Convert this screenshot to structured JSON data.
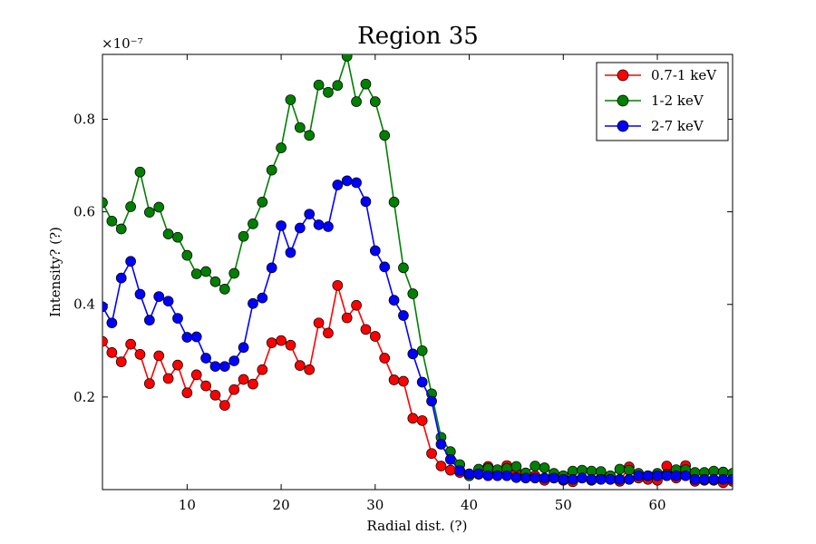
{
  "chart_data": {
    "type": "line",
    "title": "Region 35",
    "xlabel": "Radial dist. (?)",
    "ylabel": "Intensity? (?)",
    "offset_text": "×10⁻⁷",
    "xlim": [
      1,
      68
    ],
    "ylim": [
      0.0,
      0.94
    ],
    "xticks": [
      10,
      20,
      30,
      40,
      50,
      60
    ],
    "yticks": [
      0.2,
      0.4,
      0.6,
      0.8
    ],
    "xtick_labels": [
      "10",
      "20",
      "30",
      "40",
      "50",
      "60"
    ],
    "ytick_labels": [
      "0.2",
      "0.4",
      "0.6",
      "0.8"
    ],
    "grid": false,
    "legend_position": "top-right",
    "x": [
      1,
      2,
      3,
      4,
      5,
      6,
      7,
      8,
      9,
      10,
      11,
      12,
      13,
      14,
      15,
      16,
      17,
      18,
      19,
      20,
      21,
      22,
      23,
      24,
      25,
      26,
      27,
      28,
      29,
      30,
      31,
      32,
      33,
      34,
      35,
      36,
      37,
      38,
      39,
      40,
      41,
      42,
      43,
      44,
      45,
      46,
      47,
      48,
      49,
      50,
      51,
      52,
      53,
      54,
      55,
      56,
      57,
      58,
      59,
      60,
      61,
      62,
      63,
      64,
      65,
      66,
      67,
      68
    ],
    "series": [
      {
        "name": "0.7-1 keV",
        "color": "#ff0000",
        "values": [
          0.32,
          0.296,
          0.276,
          0.314,
          0.292,
          0.229,
          0.289,
          0.24,
          0.269,
          0.209,
          0.248,
          0.224,
          0.204,
          0.182,
          0.216,
          0.238,
          0.228,
          0.259,
          0.317,
          0.322,
          0.312,
          0.268,
          0.259,
          0.36,
          0.338,
          0.441,
          0.371,
          0.398,
          0.346,
          0.331,
          0.284,
          0.237,
          0.234,
          0.154,
          0.149,
          0.078,
          0.051,
          0.042,
          0.037,
          0.03,
          0.033,
          0.05,
          0.035,
          0.052,
          0.035,
          0.027,
          0.03,
          0.02,
          0.025,
          0.02,
          0.017,
          0.025,
          0.02,
          0.025,
          0.022,
          0.018,
          0.049,
          0.025,
          0.022,
          0.02,
          0.051,
          0.025,
          0.052,
          0.018,
          0.02,
          0.02,
          0.015,
          0.018
        ]
      },
      {
        "name": "1-2 keV",
        "color": "#007f00",
        "values": [
          0.62,
          0.58,
          0.563,
          0.611,
          0.686,
          0.599,
          0.61,
          0.552,
          0.545,
          0.506,
          0.466,
          0.471,
          0.449,
          0.433,
          0.467,
          0.547,
          0.574,
          0.621,
          0.69,
          0.738,
          0.842,
          0.782,
          0.765,
          0.874,
          0.858,
          0.873,
          0.936,
          0.838,
          0.876,
          0.838,
          0.765,
          0.621,
          0.479,
          0.423,
          0.3,
          0.207,
          0.113,
          0.082,
          0.054,
          0.03,
          0.044,
          0.046,
          0.043,
          0.046,
          0.05,
          0.036,
          0.051,
          0.047,
          0.035,
          0.03,
          0.04,
          0.042,
          0.04,
          0.039,
          0.03,
          0.044,
          0.042,
          0.035,
          0.03,
          0.035,
          0.033,
          0.043,
          0.043,
          0.037,
          0.037,
          0.04,
          0.038,
          0.035
        ]
      },
      {
        "name": "2-7 keV",
        "color": "#0000ff",
        "values": [
          0.395,
          0.36,
          0.457,
          0.493,
          0.422,
          0.366,
          0.417,
          0.407,
          0.37,
          0.329,
          0.33,
          0.284,
          0.266,
          0.266,
          0.278,
          0.307,
          0.402,
          0.414,
          0.479,
          0.57,
          0.512,
          0.565,
          0.595,
          0.572,
          0.568,
          0.658,
          0.667,
          0.663,
          0.622,
          0.516,
          0.481,
          0.409,
          0.376,
          0.293,
          0.232,
          0.191,
          0.098,
          0.065,
          0.041,
          0.034,
          0.034,
          0.03,
          0.03,
          0.03,
          0.026,
          0.025,
          0.025,
          0.025,
          0.025,
          0.022,
          0.022,
          0.025,
          0.022,
          0.022,
          0.022,
          0.022,
          0.022,
          0.03,
          0.03,
          0.03,
          0.03,
          0.03,
          0.03,
          0.022,
          0.022,
          0.022,
          0.022,
          0.022
        ]
      }
    ]
  }
}
